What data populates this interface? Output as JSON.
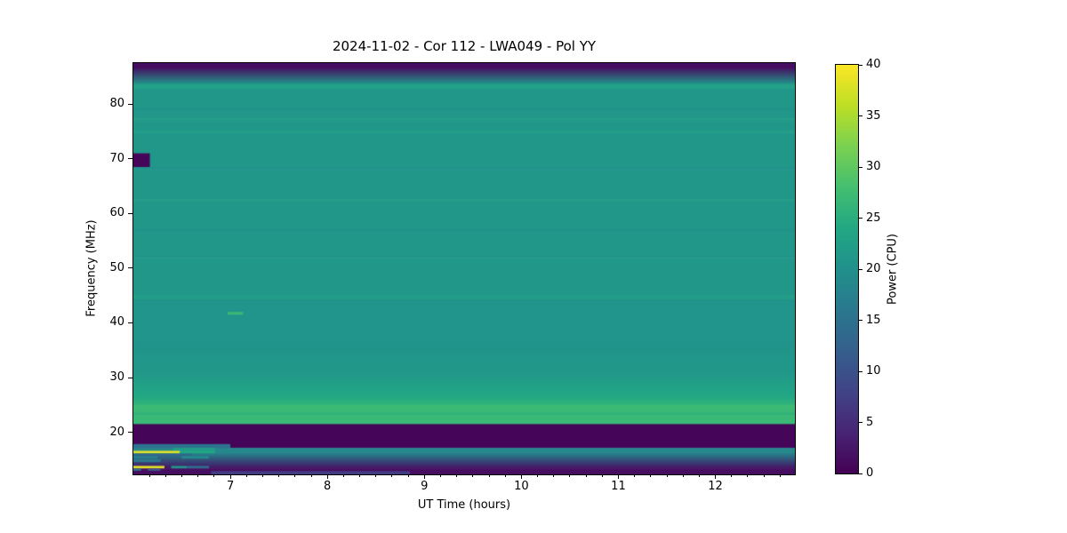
{
  "chart_data": {
    "type": "heatmap",
    "title": "2024-11-02 - Cor 112 - LWA049 - Pol YY",
    "xlabel": "UT Time (hours)",
    "ylabel": "Frequency (MHz)",
    "colorbar_label": "Power (CPU)",
    "colormap": "viridis",
    "x_range": [
      6.0,
      12.82
    ],
    "y_range": [
      12.3,
      87.5
    ],
    "clim": [
      0,
      40
    ],
    "x_ticks": [
      7,
      8,
      9,
      10,
      11,
      12
    ],
    "x_minor_step": 0.1666667,
    "y_ticks": [
      20,
      30,
      40,
      50,
      60,
      70,
      80
    ],
    "colorbar_ticks": [
      0,
      5,
      10,
      15,
      20,
      25,
      30,
      35,
      40
    ],
    "colormap_stops": [
      [
        0.0,
        "#440154"
      ],
      [
        0.1,
        "#482475"
      ],
      [
        0.2,
        "#414487"
      ],
      [
        0.3,
        "#355f8d"
      ],
      [
        0.4,
        "#2a788e"
      ],
      [
        0.5,
        "#21918c"
      ],
      [
        0.6,
        "#22a884"
      ],
      [
        0.7,
        "#44bf70"
      ],
      [
        0.8,
        "#7ad151"
      ],
      [
        0.9,
        "#bddf26"
      ],
      [
        1.0,
        "#fde725"
      ]
    ],
    "background_bands": [
      {
        "f": [
          86.7,
          87.5
        ],
        "p": [
          1.5,
          1.5
        ]
      },
      {
        "f": [
          83.6,
          86.7
        ],
        "p": [
          1.5,
          21
        ]
      },
      {
        "f": [
          82.9,
          83.6
        ],
        "p": [
          23,
          23
        ]
      },
      {
        "f": [
          79.3,
          82.9
        ],
        "p": [
          21.1,
          21.1
        ]
      },
      {
        "f": [
          78.8,
          79.3
        ],
        "p": [
          20.3,
          20.3
        ]
      },
      {
        "f": [
          77.4,
          78.8
        ],
        "p": [
          21.1,
          21.1
        ]
      },
      {
        "f": [
          76.8,
          77.4
        ],
        "p": [
          21.9,
          21.9
        ]
      },
      {
        "f": [
          75.2,
          76.8
        ],
        "p": [
          21.0,
          21.0
        ]
      },
      {
        "f": [
          74.8,
          75.2
        ],
        "p": [
          22.3,
          22.3
        ]
      },
      {
        "f": [
          68.4,
          74.8
        ],
        "p": [
          21.1,
          21.1
        ]
      },
      {
        "f": [
          68.0,
          68.4
        ],
        "p": [
          20.4,
          20.4
        ]
      },
      {
        "f": [
          62.6,
          68.0
        ],
        "p": [
          21.1,
          21.1
        ]
      },
      {
        "f": [
          62.1,
          62.6
        ],
        "p": [
          21.8,
          21.8
        ]
      },
      {
        "f": [
          57.2,
          62.1
        ],
        "p": [
          21.1,
          21.1
        ]
      },
      {
        "f": [
          56.7,
          57.2
        ],
        "p": [
          20.3,
          20.3
        ]
      },
      {
        "f": [
          52.3,
          56.7
        ],
        "p": [
          21.1,
          21.1
        ]
      },
      {
        "f": [
          51.9,
          52.3
        ],
        "p": [
          20.5,
          20.5
        ]
      },
      {
        "f": [
          45.1,
          51.9
        ],
        "p": [
          21.1,
          21.1
        ]
      },
      {
        "f": [
          44.3,
          45.1
        ],
        "p": [
          22.1,
          22.1
        ]
      },
      {
        "f": [
          36.4,
          44.3
        ],
        "p": [
          20.5,
          20.5
        ]
      },
      {
        "f": [
          35.9,
          36.4
        ],
        "p": [
          20.2,
          20.2
        ]
      },
      {
        "f": [
          31.0,
          35.9
        ],
        "p": [
          20.6,
          21.2
        ]
      },
      {
        "f": [
          26.5,
          31.0
        ],
        "p": [
          21.2,
          24.0
        ]
      },
      {
        "f": [
          25.0,
          26.5
        ],
        "p": [
          24.0,
          26.0
        ]
      },
      {
        "f": [
          24.5,
          25.0
        ],
        "p": [
          27.2,
          27.2
        ]
      },
      {
        "f": [
          23.6,
          24.5
        ],
        "p": [
          26.8,
          26.8
        ]
      },
      {
        "f": [
          23.2,
          23.6
        ],
        "p": [
          25.6,
          25.6
        ]
      },
      {
        "f": [
          21.5,
          23.2
        ],
        "p": [
          26.8,
          26.8
        ]
      },
      {
        "f": [
          17.15,
          21.5
        ],
        "p": [
          0.5,
          0.5
        ]
      },
      {
        "f": [
          16.3,
          17.15
        ],
        "p": [
          18.5,
          18.5
        ]
      },
      {
        "f": [
          13.4,
          16.3
        ],
        "p": [
          18.5,
          2.0
        ]
      },
      {
        "f": [
          12.3,
          13.4
        ],
        "p": [
          1.5,
          1.5
        ]
      }
    ],
    "features": [
      {
        "name": "dark-blob-70mhz",
        "t": [
          6.0,
          6.17
        ],
        "f": [
          68.5,
          71.0
        ],
        "p": 0.5
      },
      {
        "name": "green-dash-42mhz",
        "t": [
          6.97,
          7.13
        ],
        "f": [
          41.5,
          42.0
        ],
        "p": 27
      },
      {
        "name": "teal-row-over-dark",
        "t": [
          6.0,
          7.0
        ],
        "f": [
          17.15,
          17.85
        ],
        "p": 15
      },
      {
        "name": "bright-seg-17mhz",
        "t": [
          6.41,
          6.84
        ],
        "f": [
          16.6,
          17.15
        ],
        "p": 22
      },
      {
        "name": "yellow-rfi-line-1",
        "t": [
          6.0,
          6.48
        ],
        "f": [
          16.15,
          16.6
        ],
        "p": 38.5
      },
      {
        "name": "green-after-yellow-1",
        "t": [
          6.48,
          6.84
        ],
        "f": [
          16.15,
          16.6
        ],
        "p": 24
      },
      {
        "name": "blue-row-16mhz",
        "t": [
          6.0,
          6.6
        ],
        "f": [
          15.65,
          16.1
        ],
        "p": 13
      },
      {
        "name": "teal-seg-15mhz-left",
        "t": [
          6.0,
          6.25
        ],
        "f": [
          15.2,
          15.65
        ],
        "p": 17
      },
      {
        "name": "teal-seg-15mhz",
        "t": [
          6.5,
          6.78
        ],
        "f": [
          15.2,
          15.65
        ],
        "p": 19
      },
      {
        "name": "teal-seg-14-8mhz",
        "t": [
          6.0,
          6.28
        ],
        "f": [
          14.55,
          15.1
        ],
        "p": 16
      },
      {
        "name": "yellow-rfi-line-2",
        "t": [
          6.0,
          6.32
        ],
        "f": [
          13.4,
          13.85
        ],
        "p": 38.5
      },
      {
        "name": "teal-after-yellow-2",
        "t": [
          6.39,
          6.55
        ],
        "f": [
          13.4,
          13.85
        ],
        "p": 21
      },
      {
        "name": "dim-after-yellow-2",
        "t": [
          6.55,
          6.78
        ],
        "f": [
          13.4,
          13.85
        ],
        "p": 14
      },
      {
        "name": "teal-dot-13mhz-a",
        "t": [
          6.0,
          6.08
        ],
        "f": [
          12.95,
          13.35
        ],
        "p": 14
      },
      {
        "name": "teal-dot-13mhz-b",
        "t": [
          6.15,
          6.28
        ],
        "f": [
          12.95,
          13.35
        ],
        "p": 11
      },
      {
        "name": "faint-blue-row-bottom",
        "t": [
          6.8,
          8.85
        ],
        "f": [
          12.3,
          12.9
        ],
        "p": 7
      }
    ]
  }
}
